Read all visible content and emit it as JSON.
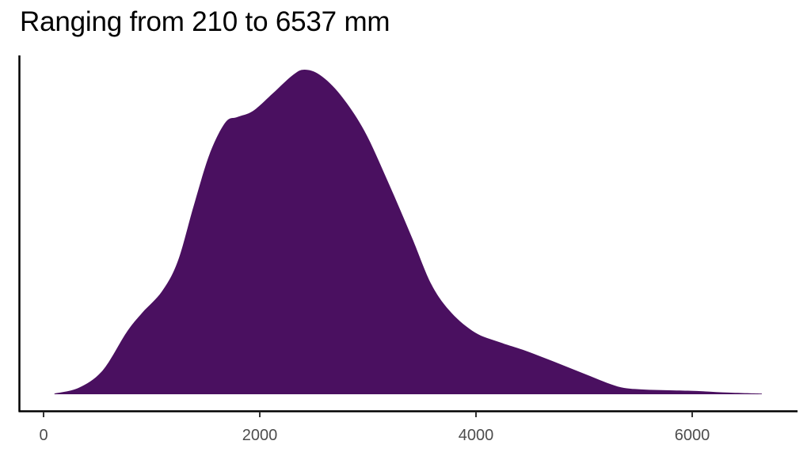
{
  "chart_data": {
    "type": "area",
    "subtype": "density",
    "title": "Ranging from 210 to 6537 mm",
    "xlabel": "",
    "ylabel": "",
    "xlim": [
      -100,
      6800
    ],
    "x_ticks": [
      0,
      2000,
      4000,
      6000
    ],
    "x_tick_labels": [
      "0",
      "2000",
      "4000",
      "6000"
    ],
    "y_ticks": [],
    "grid": false,
    "legend": null,
    "fill_color": "#4a1060",
    "series": [
      {
        "name": "density",
        "x": [
          100,
          327,
          546,
          766,
          912,
          1095,
          1242,
          1388,
          1535,
          1681,
          1791,
          1938,
          2121,
          2304,
          2414,
          2560,
          2747,
          2967,
          3187,
          3407,
          3590,
          3773,
          3993,
          4213,
          4432,
          4725,
          5018,
          5311,
          5531,
          5824,
          6044,
          6337,
          6645
        ],
        "values": [
          0.002,
          0.02,
          0.073,
          0.19,
          0.251,
          0.317,
          0.41,
          0.58,
          0.739,
          0.837,
          0.854,
          0.873,
          0.927,
          0.983,
          1.0,
          0.983,
          0.922,
          0.812,
          0.654,
          0.483,
          0.337,
          0.251,
          0.19,
          0.161,
          0.137,
          0.1,
          0.061,
          0.024,
          0.015,
          0.012,
          0.01,
          0.005,
          0.002
        ]
      }
    ]
  }
}
